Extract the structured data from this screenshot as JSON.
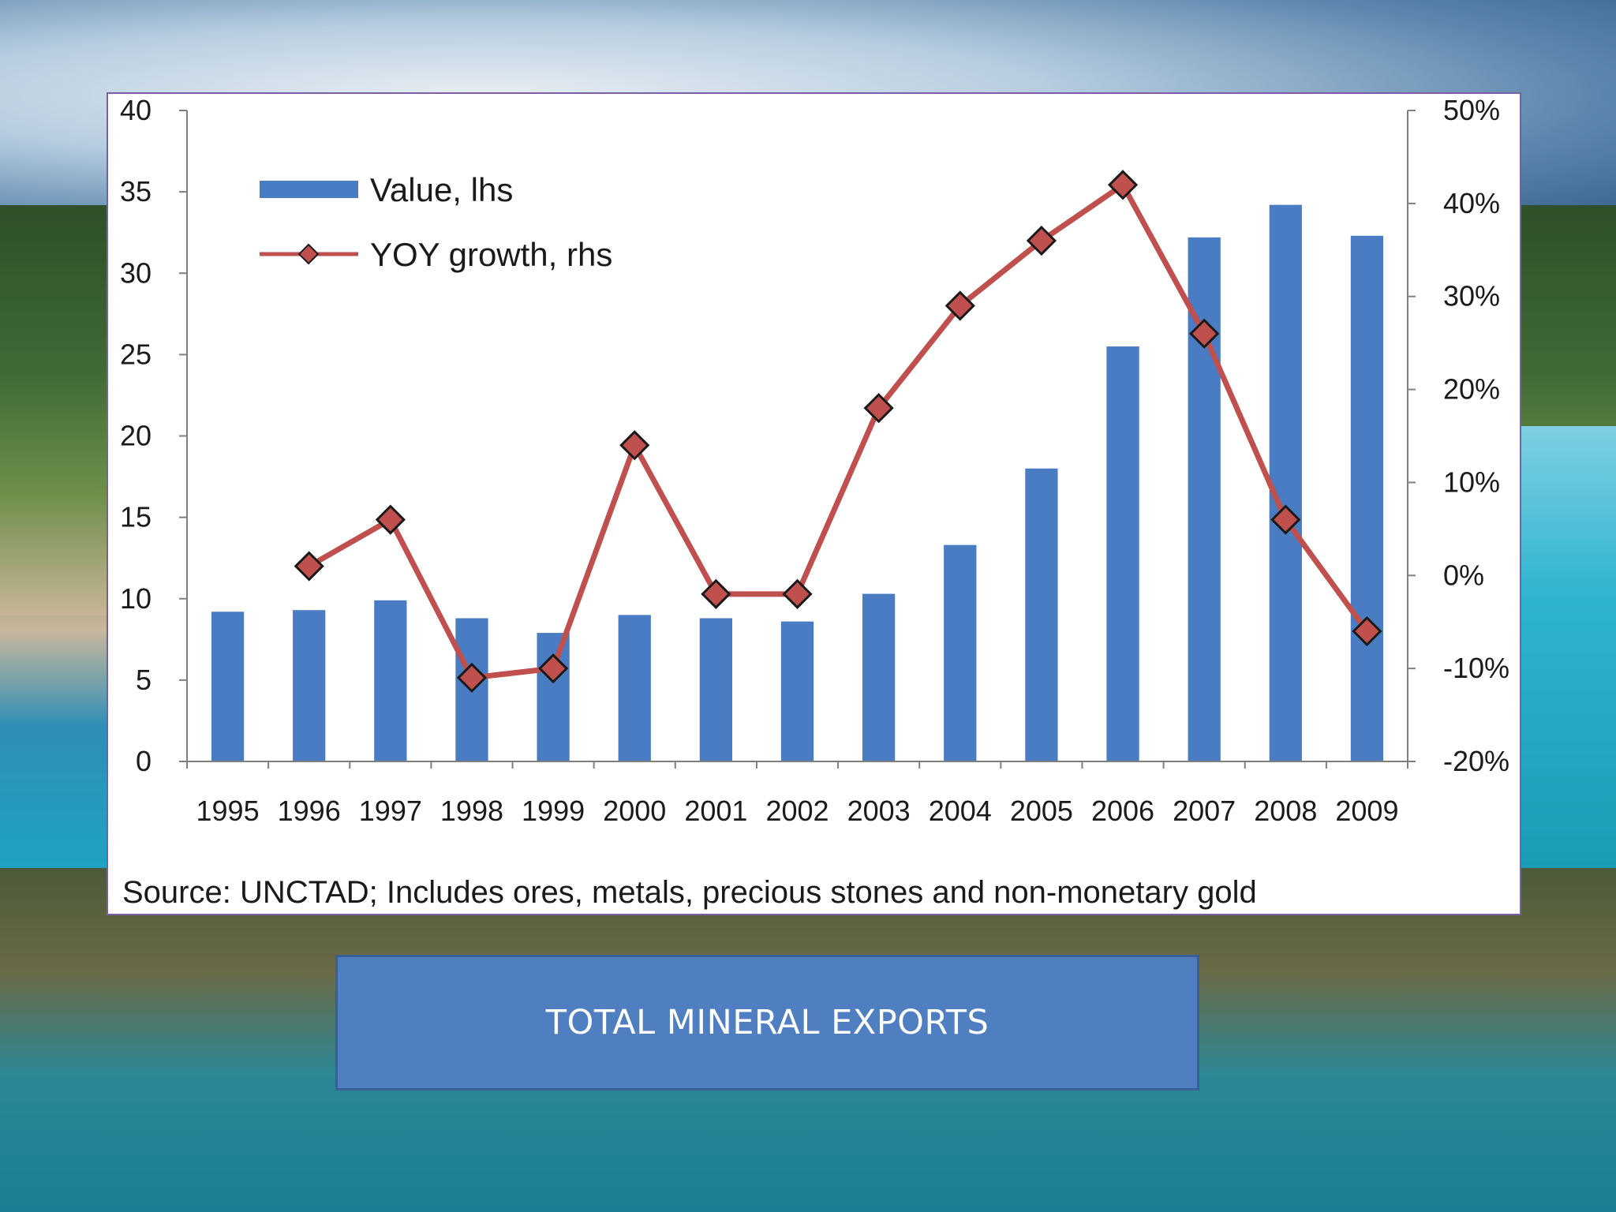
{
  "caption": "TOTAL MINERAL EXPORTS",
  "source_note": "Source: UNCTAD;  Includes ores, metals, precious stones and non-monetary gold",
  "colors": {
    "bar": "#4a7cc4",
    "line": "#c0504d",
    "marker_fill": "#c0504d",
    "marker_stroke": "#1a1a1a"
  },
  "chart_data": {
    "type": "bar",
    "categories": [
      "1995",
      "1996",
      "1997",
      "1998",
      "1999",
      "2000",
      "2001",
      "2002",
      "2003",
      "2004",
      "2005",
      "2006",
      "2007",
      "2008",
      "2009"
    ],
    "series": [
      {
        "name": "Value, lhs",
        "type": "bar",
        "axis": "left",
        "values": [
          9.2,
          9.3,
          9.9,
          8.8,
          7.9,
          9.0,
          8.8,
          8.6,
          10.3,
          13.3,
          18.0,
          25.5,
          32.2,
          34.2,
          32.3
        ]
      },
      {
        "name": "YOY growth, rhs",
        "type": "line",
        "axis": "right",
        "values": [
          null,
          1,
          6,
          -11,
          -10,
          14,
          -2,
          -2,
          18,
          29,
          36,
          42,
          26,
          6,
          -6
        ]
      }
    ],
    "left_axis": {
      "ylim": [
        0,
        40
      ],
      "ticks": [
        "0",
        "5",
        "10",
        "15",
        "20",
        "25",
        "30",
        "35",
        "40"
      ]
    },
    "right_axis": {
      "ylim": [
        -20,
        50
      ],
      "ticks": [
        "-20%",
        "-10%",
        "0%",
        "10%",
        "20%",
        "30%",
        "40%",
        "50%"
      ]
    },
    "legend_position": "top-left",
    "grid": false
  }
}
